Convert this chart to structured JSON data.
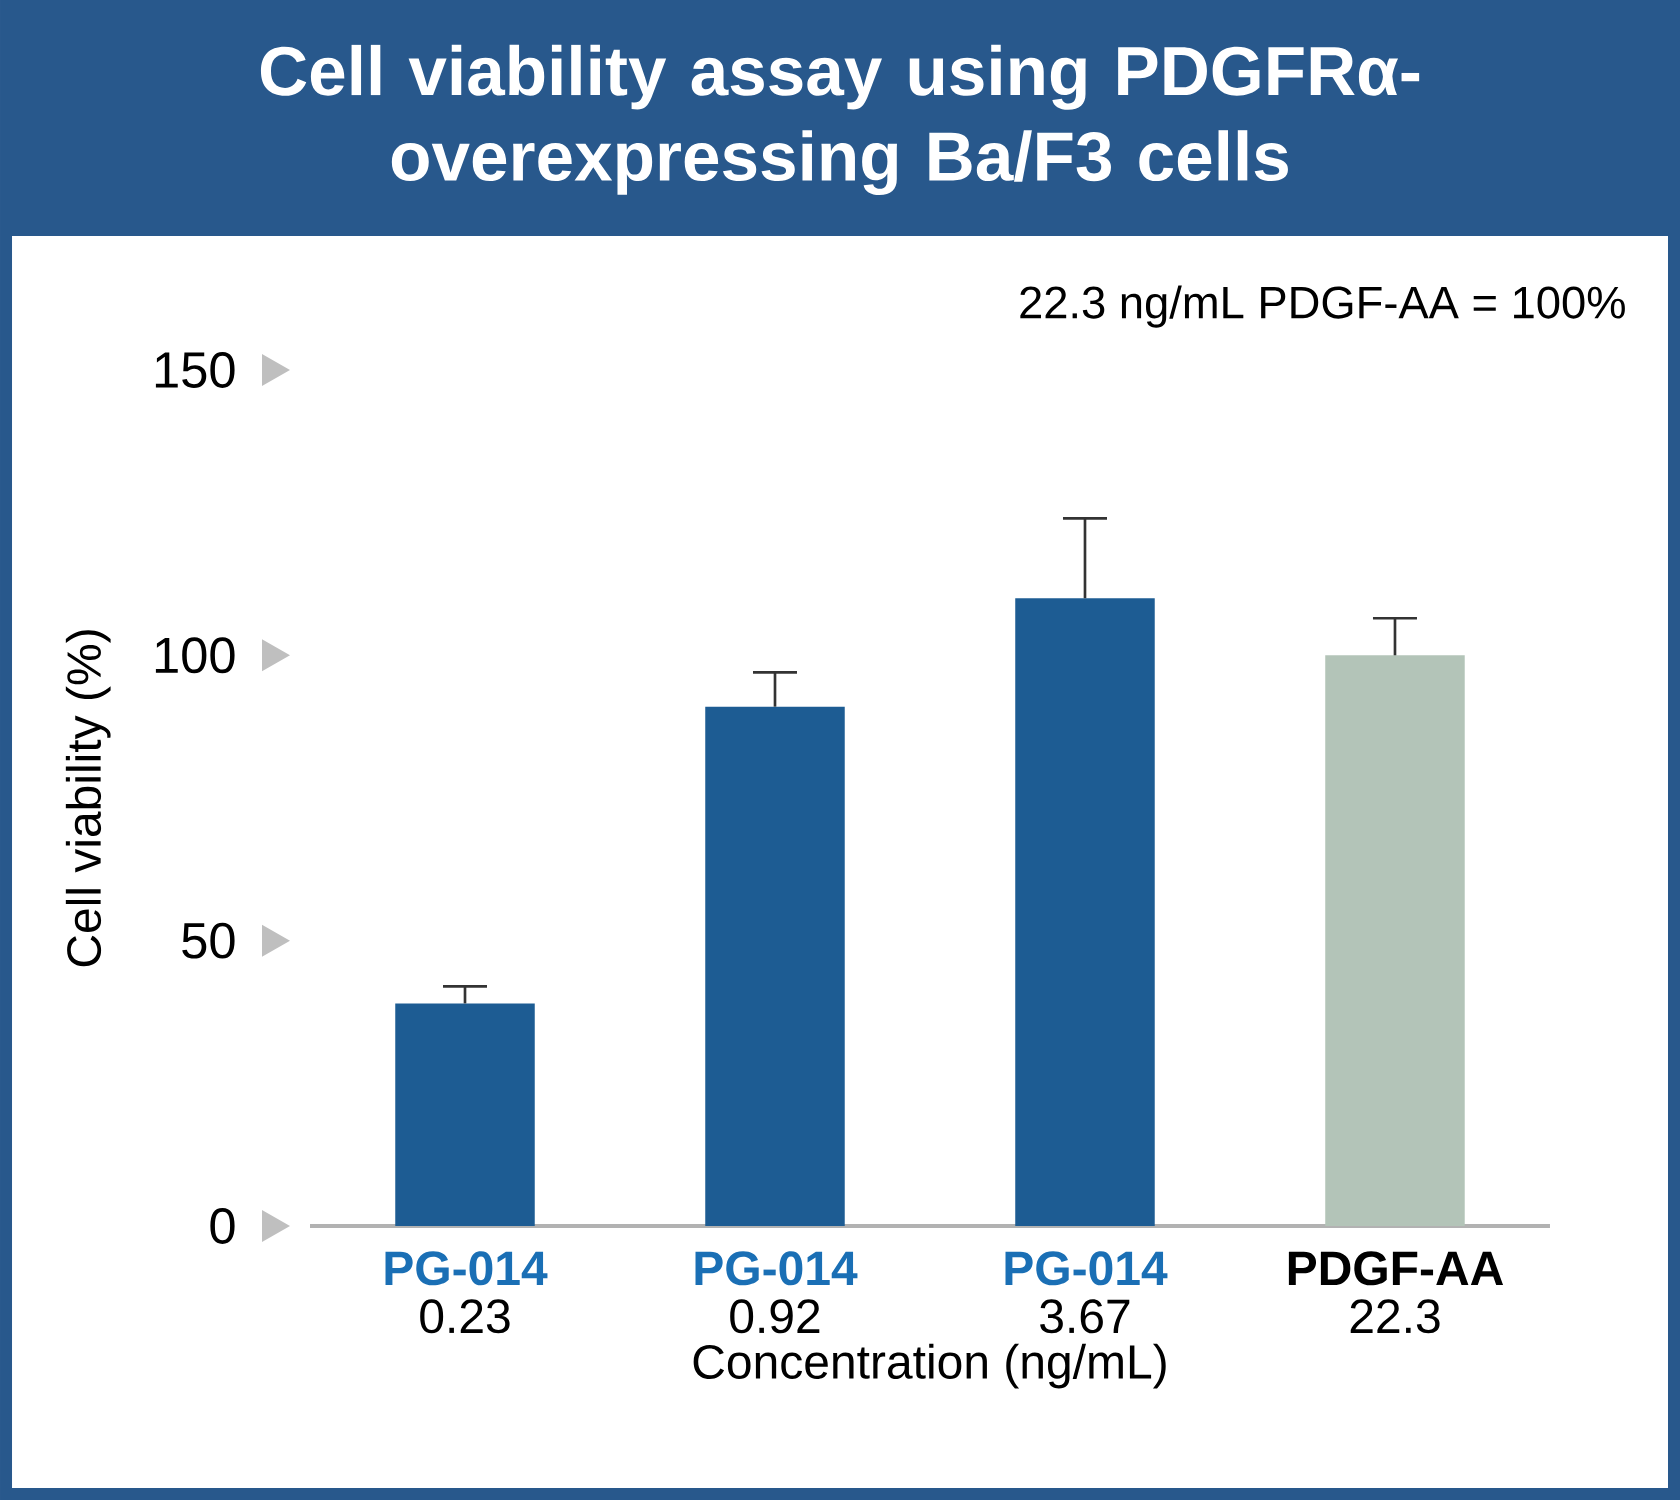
{
  "chart_data": {
    "type": "bar",
    "title": "Cell viability assay using PDGFRα-overexpressing Ba/F3 cells",
    "categories": [
      "0.23",
      "0.92",
      "3.67",
      "22.3"
    ],
    "xlabel": "Concentration (ng/mL)",
    "ylabel": "Cell viability (%)",
    "annotations": [
      "22.3 ng/mL PDGF-AA = 100%"
    ],
    "series": [
      {
        "name": "PG-014",
        "color": "#1d5c93",
        "values": [
          39,
          91,
          110,
          null
        ],
        "errors": [
          3,
          6,
          14,
          null
        ]
      },
      {
        "name": "PDGF-AA",
        "color": "#b3c4b8",
        "values": [
          null,
          null,
          null,
          100
        ],
        "errors": [
          null,
          null,
          null,
          6.5
        ]
      }
    ],
    "ylim": [
      0,
      150
    ],
    "yticks": [
      0,
      50,
      100,
      150
    ]
  }
}
